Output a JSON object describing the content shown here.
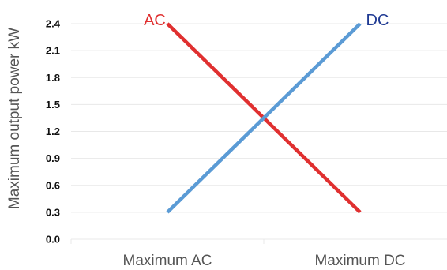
{
  "chart_data": {
    "type": "line",
    "categories": [
      "Maximum AC",
      "Maximum DC"
    ],
    "ylabel": "Maximum output power kW",
    "xlabel": "",
    "ylim": [
      0.0,
      2.4
    ],
    "yticks": [
      "0.0",
      "0.3",
      "0.6",
      "0.9",
      "1.2",
      "1.5",
      "1.8",
      "2.1",
      "2.4"
    ],
    "grid": true,
    "series": [
      {
        "name": "AC",
        "values": [
          2.4,
          0.3
        ],
        "color": "#e03030"
      },
      {
        "name": "DC",
        "values": [
          0.3,
          2.4
        ],
        "color": "#5b9bd5",
        "label_color": "#1f3a93"
      }
    ]
  }
}
